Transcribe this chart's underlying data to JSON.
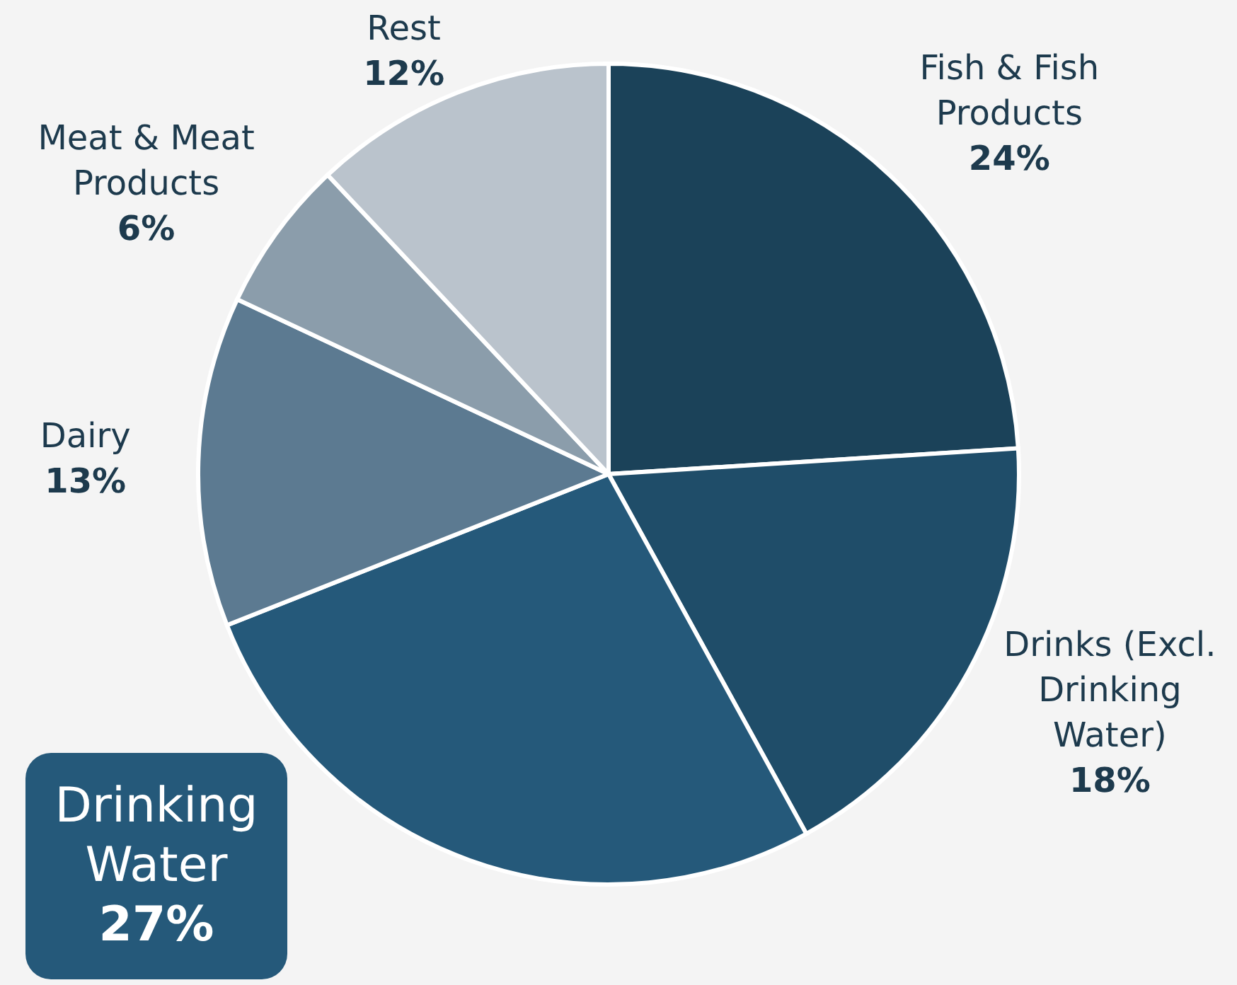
{
  "chart_data": {
    "type": "pie",
    "categories": [
      "Fish & Fish Products",
      "Drinks (Excl. Drinking Water)",
      "Drinking Water",
      "Dairy",
      "Meat & Meat Products",
      "Rest"
    ],
    "values": [
      24,
      18,
      27,
      13,
      6,
      12
    ],
    "colors": [
      "#1b4259",
      "#1f4d69",
      "#25597a",
      "#5c7a91",
      "#8b9dab",
      "#bac3cc"
    ],
    "value_labels": [
      "24%",
      "18%",
      "27%",
      "13%",
      "6%",
      "12%"
    ]
  }
}
